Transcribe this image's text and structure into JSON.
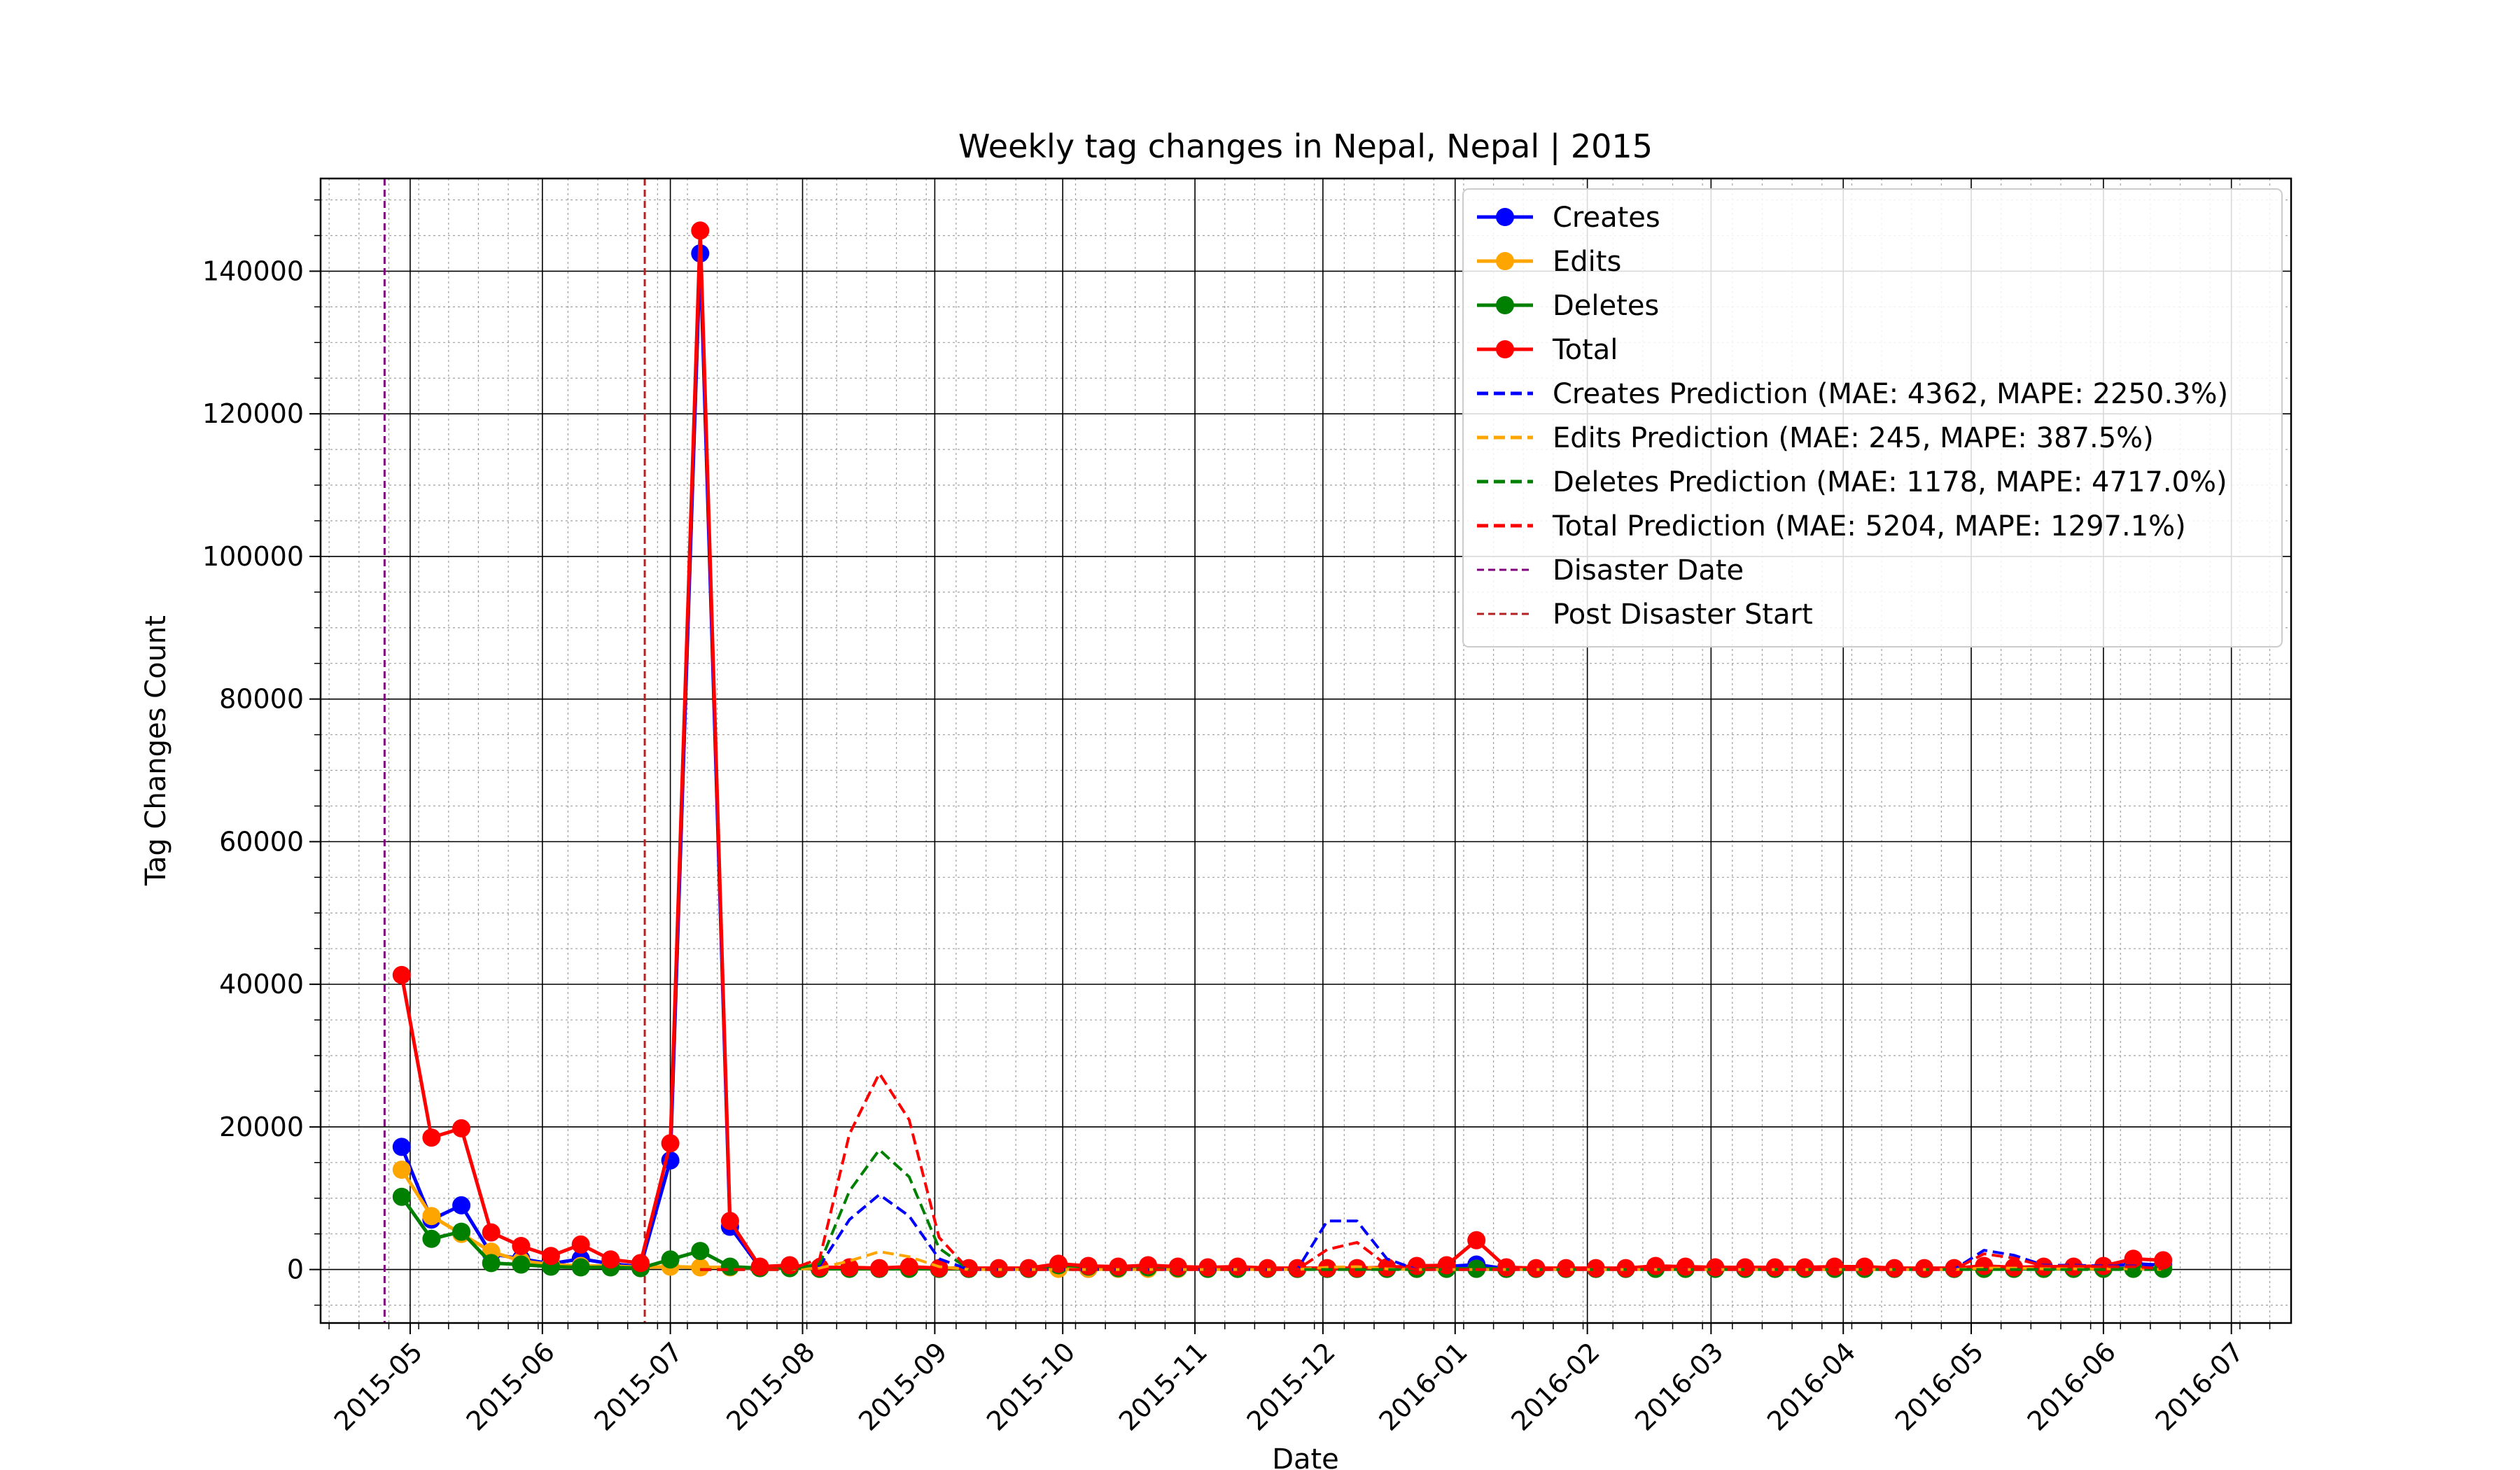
{
  "chart_data": {
    "type": "line",
    "title": "Weekly tag changes in Nepal, Nepal | 2015",
    "xlabel": "Date",
    "ylabel": "Tag Changes Count",
    "xlim": [
      "2015-04-10",
      "2016-07-15"
    ],
    "ylim": [
      -7500,
      153000
    ],
    "grid": true,
    "minor_grid": true,
    "legend_position": "upper-right",
    "x_ticks": [
      "2015-05-01",
      "2015-06-01",
      "2015-07-01",
      "2015-08-01",
      "2015-09-01",
      "2015-10-01",
      "2015-11-01",
      "2015-12-01",
      "2016-01-01",
      "2016-02-01",
      "2016-03-01",
      "2016-04-01",
      "2016-05-01",
      "2016-06-01",
      "2016-07-01"
    ],
    "x_tick_labels": [
      "2015-05",
      "2015-06",
      "2015-07",
      "2015-08",
      "2015-09",
      "2015-10",
      "2015-11",
      "2015-12",
      "2016-01",
      "2016-02",
      "2016-03",
      "2016-04",
      "2016-05",
      "2016-06",
      "2016-07"
    ],
    "y_ticks": [
      0,
      20000,
      40000,
      60000,
      80000,
      100000,
      120000,
      140000
    ],
    "y_tick_labels": [
      "0",
      "20000",
      "40000",
      "60000",
      "80000",
      "100000",
      "120000",
      "140000"
    ],
    "x": [
      "2015-04-29",
      "2015-05-06",
      "2015-05-13",
      "2015-05-20",
      "2015-05-27",
      "2015-06-03",
      "2015-06-10",
      "2015-06-17",
      "2015-06-24",
      "2015-07-01",
      "2015-07-08",
      "2015-07-15",
      "2015-07-22",
      "2015-07-29",
      "2015-08-05",
      "2015-08-12",
      "2015-08-19",
      "2015-08-26",
      "2015-09-02",
      "2015-09-09",
      "2015-09-16",
      "2015-09-23",
      "2015-09-30",
      "2015-10-07",
      "2015-10-14",
      "2015-10-21",
      "2015-10-28",
      "2015-11-04",
      "2015-11-11",
      "2015-11-18",
      "2015-11-25",
      "2015-12-02",
      "2015-12-09",
      "2015-12-16",
      "2015-12-23",
      "2015-12-30",
      "2016-01-06",
      "2016-01-13",
      "2016-01-20",
      "2016-01-27",
      "2016-02-03",
      "2016-02-10",
      "2016-02-17",
      "2016-02-24",
      "2016-03-02",
      "2016-03-09",
      "2016-03-16",
      "2016-03-23",
      "2016-03-30",
      "2016-04-06",
      "2016-04-13",
      "2016-04-20",
      "2016-04-27",
      "2016-05-04",
      "2016-05-11",
      "2016-05-18",
      "2016-05-25",
      "2016-06-01",
      "2016-06-08",
      "2016-06-15"
    ],
    "series": [
      {
        "name": "Creates",
        "style": "solid-marker",
        "color": "#0000ff",
        "values": [
          17200,
          7000,
          9000,
          2200,
          1500,
          800,
          1500,
          800,
          400,
          15300,
          142500,
          6000,
          300,
          300,
          200,
          200,
          100,
          200,
          100,
          100,
          100,
          100,
          200,
          100,
          100,
          200,
          100,
          100,
          100,
          100,
          100,
          100,
          100,
          100,
          300,
          400,
          700,
          100,
          100,
          100,
          100,
          100,
          200,
          200,
          100,
          100,
          100,
          100,
          200,
          200,
          100,
          100,
          100,
          200,
          200,
          200,
          300,
          300,
          800,
          600
        ]
      },
      {
        "name": "Edits",
        "style": "solid-marker",
        "color": "#ffa500",
        "values": [
          14000,
          7500,
          5000,
          2500,
          1200,
          700,
          500,
          500,
          300,
          400,
          300,
          300,
          200,
          200,
          100,
          100,
          100,
          100,
          100,
          100,
          100,
          100,
          100,
          100,
          100,
          100,
          100,
          100,
          100,
          100,
          100,
          100,
          100,
          100,
          100,
          100,
          100,
          100,
          100,
          100,
          100,
          100,
          100,
          100,
          100,
          100,
          100,
          100,
          100,
          100,
          100,
          100,
          100,
          100,
          100,
          100,
          100,
          100,
          200,
          200
        ]
      },
      {
        "name": "Deletes",
        "style": "solid-marker",
        "color": "#008000",
        "values": [
          10200,
          4300,
          5300,
          900,
          700,
          400,
          300,
          300,
          200,
          1400,
          2600,
          400,
          200,
          200,
          100,
          100,
          100,
          100,
          100,
          100,
          100,
          100,
          600,
          400,
          200,
          300,
          200,
          100,
          100,
          100,
          100,
          100,
          100,
          100,
          100,
          100,
          100,
          100,
          100,
          100,
          100,
          100,
          100,
          100,
          100,
          100,
          100,
          100,
          100,
          100,
          100,
          100,
          100,
          100,
          100,
          100,
          100,
          100,
          100,
          100
        ]
      },
      {
        "name": "Total",
        "style": "solid-marker",
        "color": "#ff0000",
        "values": [
          41300,
          18500,
          19800,
          5200,
          3300,
          1900,
          3500,
          1400,
          900,
          17700,
          145700,
          6800,
          400,
          600,
          300,
          300,
          200,
          400,
          200,
          200,
          200,
          200,
          800,
          500,
          400,
          600,
          400,
          300,
          400,
          200,
          200,
          200,
          200,
          300,
          500,
          600,
          4100,
          300,
          200,
          200,
          200,
          200,
          500,
          400,
          300,
          300,
          300,
          300,
          400,
          400,
          200,
          200,
          200,
          500,
          300,
          400,
          400,
          500,
          1500,
          1300
        ]
      },
      {
        "name": "Creates Prediction (MAE: 4362, MAPE: 2250.3%)",
        "style": "dashed",
        "color": "#0000ff",
        "values": [
          null,
          null,
          null,
          null,
          null,
          null,
          null,
          null,
          null,
          null,
          0,
          0,
          0,
          0,
          500,
          7000,
          10500,
          7500,
          1500,
          0,
          0,
          0,
          0,
          0,
          0,
          0,
          0,
          0,
          0,
          0,
          0,
          6800,
          6800,
          1500,
          0,
          0,
          0,
          0,
          0,
          0,
          0,
          0,
          0,
          0,
          0,
          0,
          0,
          0,
          0,
          0,
          0,
          0,
          0,
          2700,
          2000,
          600,
          600,
          500,
          500,
          100
        ]
      },
      {
        "name": "Edits Prediction (MAE: 245, MAPE: 387.5%)",
        "style": "dashed",
        "color": "#ffa500",
        "values": [
          null,
          null,
          null,
          null,
          null,
          null,
          null,
          null,
          null,
          null,
          0,
          0,
          0,
          0,
          200,
          1200,
          2500,
          1800,
          400,
          0,
          0,
          0,
          0,
          0,
          0,
          0,
          0,
          0,
          0,
          0,
          0,
          300,
          400,
          100,
          0,
          0,
          0,
          0,
          0,
          0,
          0,
          0,
          0,
          0,
          0,
          0,
          0,
          0,
          0,
          0,
          0,
          0,
          0,
          200,
          200,
          100,
          100,
          100,
          100,
          0
        ]
      },
      {
        "name": "Deletes Prediction (MAE: 1178, MAPE: 4717.0%)",
        "style": "dashed",
        "color": "#008000",
        "values": [
          null,
          null,
          null,
          null,
          null,
          null,
          null,
          null,
          null,
          null,
          0,
          0,
          0,
          0,
          800,
          11000,
          16800,
          13000,
          3000,
          0,
          0,
          0,
          0,
          0,
          0,
          0,
          0,
          0,
          0,
          0,
          0,
          0,
          0,
          0,
          0,
          0,
          0,
          0,
          0,
          0,
          0,
          0,
          0,
          0,
          0,
          0,
          0,
          0,
          0,
          0,
          0,
          0,
          0,
          0,
          0,
          0,
          0,
          0,
          0,
          0
        ]
      },
      {
        "name": "Total Prediction (MAE: 5204, MAPE: 1297.1%)",
        "style": "dashed",
        "color": "#ff0000",
        "values": [
          null,
          null,
          null,
          null,
          null,
          null,
          null,
          null,
          null,
          null,
          0,
          0,
          0,
          0,
          1500,
          19000,
          27500,
          21000,
          4500,
          0,
          0,
          0,
          0,
          0,
          0,
          0,
          0,
          0,
          0,
          0,
          0,
          2800,
          3800,
          600,
          0,
          0,
          0,
          0,
          0,
          0,
          0,
          0,
          0,
          0,
          0,
          0,
          0,
          0,
          0,
          0,
          0,
          0,
          0,
          2200,
          1600,
          500,
          500,
          400,
          400,
          100
        ]
      }
    ],
    "vlines": [
      {
        "name": "Disaster Date",
        "date": "2015-04-25",
        "color": "#800080"
      },
      {
        "name": "Post Disaster Start",
        "date": "2015-06-25",
        "color": "#b22222"
      }
    ]
  }
}
